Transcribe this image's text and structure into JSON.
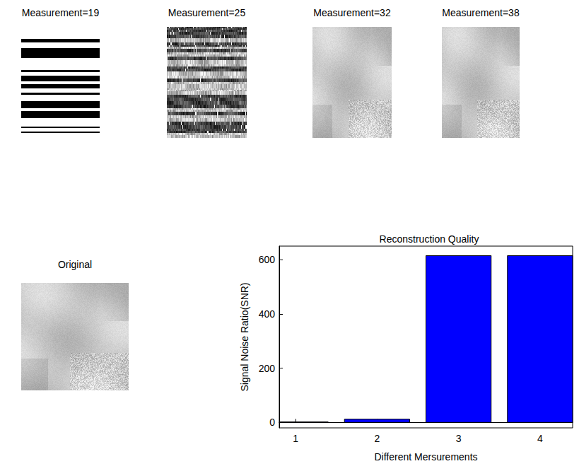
{
  "panels": [
    {
      "title": "Measurement=19"
    },
    {
      "title": "Measurement=25"
    },
    {
      "title": "Measurement=32"
    },
    {
      "title": "Measurement=38"
    }
  ],
  "original": {
    "title": "Original"
  },
  "chart_data": {
    "type": "bar",
    "title": "Reconstruction Quality",
    "x_label": "Different Mersurements",
    "y_label": "Signal Noise Ratio(SNR)",
    "x": [
      1,
      2,
      3,
      4
    ],
    "values": [
      2,
      12,
      615,
      615
    ],
    "color": "#0000ff",
    "xlim": [
      0.8,
      4.4
    ],
    "xticks": [
      1,
      2,
      3,
      4
    ],
    "ylim": [
      -20,
      650
    ],
    "yticks": [
      0,
      200,
      400,
      600
    ],
    "grid": false
  }
}
